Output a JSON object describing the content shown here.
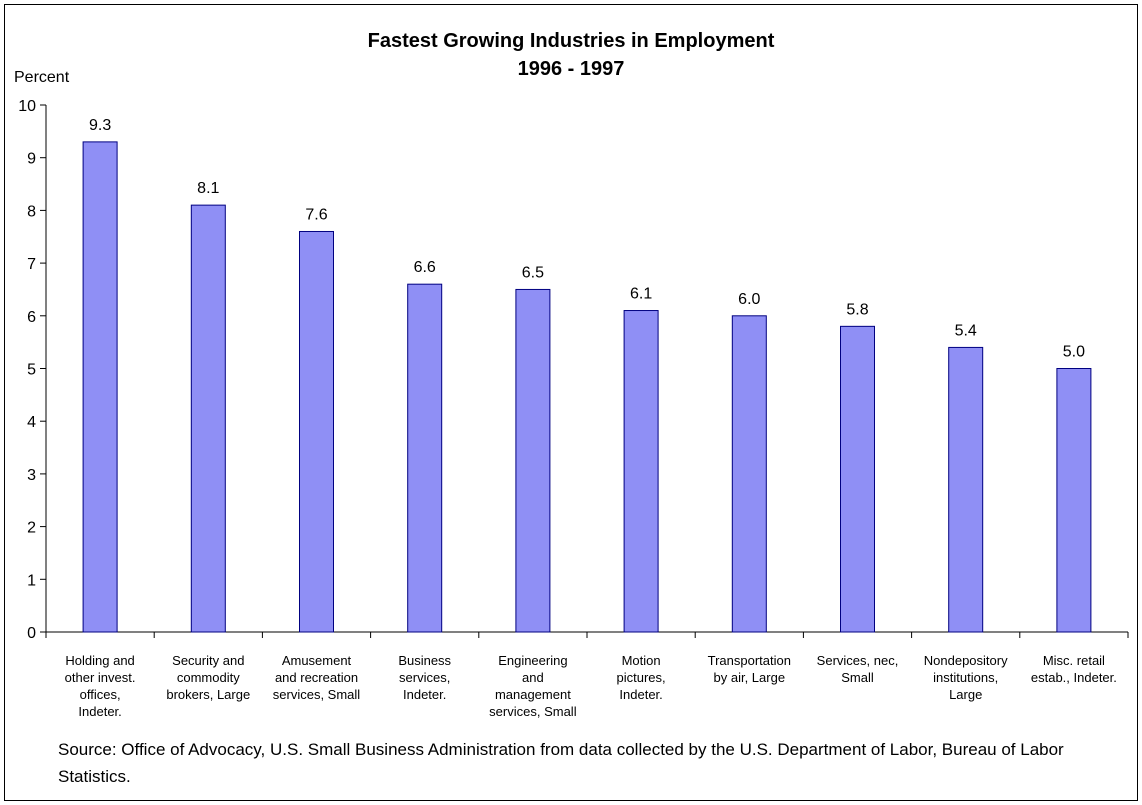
{
  "chart_data": {
    "type": "bar",
    "title": "Fastest Growing Industries in Employment",
    "subtitle": "1996 - 1997",
    "ylabel": "Percent",
    "xlabel": "",
    "ylim": [
      0,
      10
    ],
    "yticks": [
      0,
      1,
      2,
      3,
      4,
      5,
      6,
      7,
      8,
      9,
      10
    ],
    "grid": false,
    "legend": "none",
    "bar_color": "#8f8ff5",
    "bar_stroke": "#000080",
    "categories": [
      "Holding and other invest. offices, Indeter.",
      "Security and commodity brokers, Large",
      "Amusement and recreation services, Small",
      "Business services, Indeter.",
      "Engineering and management services, Small",
      "Motion pictures, Indeter.",
      "Transportation by air, Large",
      "Services, nec, Small",
      "Nondepository institutions, Large",
      "Misc. retail estab., Indeter."
    ],
    "category_lines": [
      "Holding and\nother invest.\noffices,\nIndeter.",
      "Security and\ncommodity\nbrokers, Large",
      "Amusement\nand recreation\nservices, Small",
      "Business\nservices,\nIndeter.",
      "Engineering\nand\nmanagement\nservices, Small",
      "Motion\npictures,\nIndeter.",
      "Transportation\nby air, Large",
      "Services, nec,\nSmall",
      "Nondepository\ninstitutions,\nLarge",
      "Misc. retail\nestab., Indeter."
    ],
    "values": [
      9.3,
      8.1,
      7.6,
      6.6,
      6.5,
      6.1,
      6.0,
      5.8,
      5.4,
      5.0
    ],
    "value_labels": [
      "9.3",
      "8.1",
      "7.6",
      "6.6",
      "6.5",
      "6.1",
      "6.0",
      "5.8",
      "5.4",
      "5.0"
    ]
  },
  "source": "Source: Office of Advocacy, U.S. Small Business Administration from data collected by the U.S. Department of Labor, Bureau of Labor Statistics."
}
